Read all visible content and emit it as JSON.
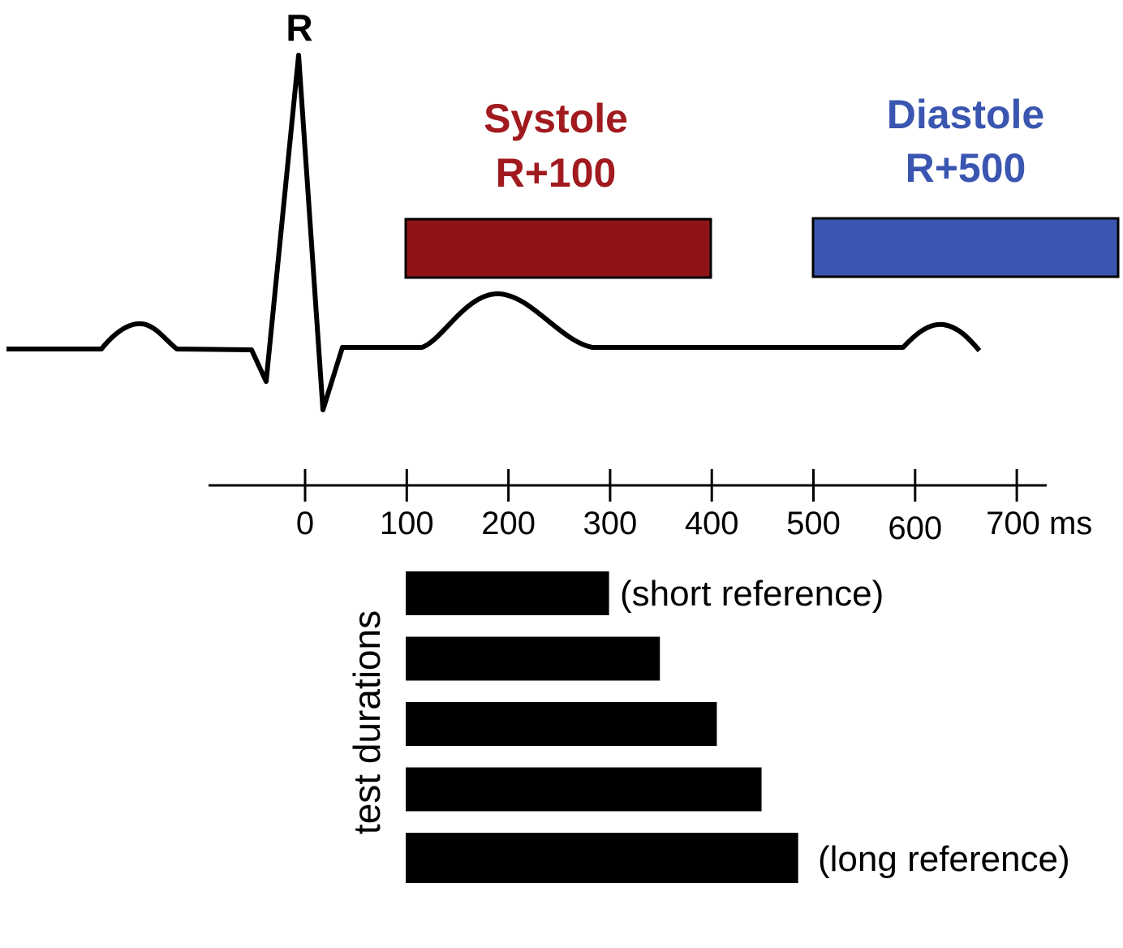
{
  "peak_label": "R",
  "colors": {
    "systole": "#8E1418",
    "diastole": "#3A56B0",
    "line": "#000000",
    "systole_text": "#A11A1F",
    "diastole_text": "#3A56B0"
  },
  "systole": {
    "title": "Systole",
    "subtitle": "R+100",
    "window_ms": [
      100,
      400
    ]
  },
  "diastole": {
    "title": "Diastole",
    "subtitle": "R+500",
    "window_ms": [
      500,
      800
    ]
  },
  "axis": {
    "unit": "ms",
    "ticks": [
      {
        "value": 0,
        "label": "0"
      },
      {
        "value": 100,
        "label": "100"
      },
      {
        "value": 200,
        "label": "200"
      },
      {
        "value": 300,
        "label": "300"
      },
      {
        "value": 400,
        "label": "400"
      },
      {
        "value": 500,
        "label": "500"
      },
      {
        "value": 600,
        "label": "600"
      },
      {
        "value": 700,
        "label": "700 ms"
      }
    ]
  },
  "durations": {
    "axis_label": "test durations",
    "bars_ms": [
      200,
      250,
      306,
      350,
      386
    ],
    "short_label": "(short reference)",
    "long_label": "(long reference)"
  }
}
